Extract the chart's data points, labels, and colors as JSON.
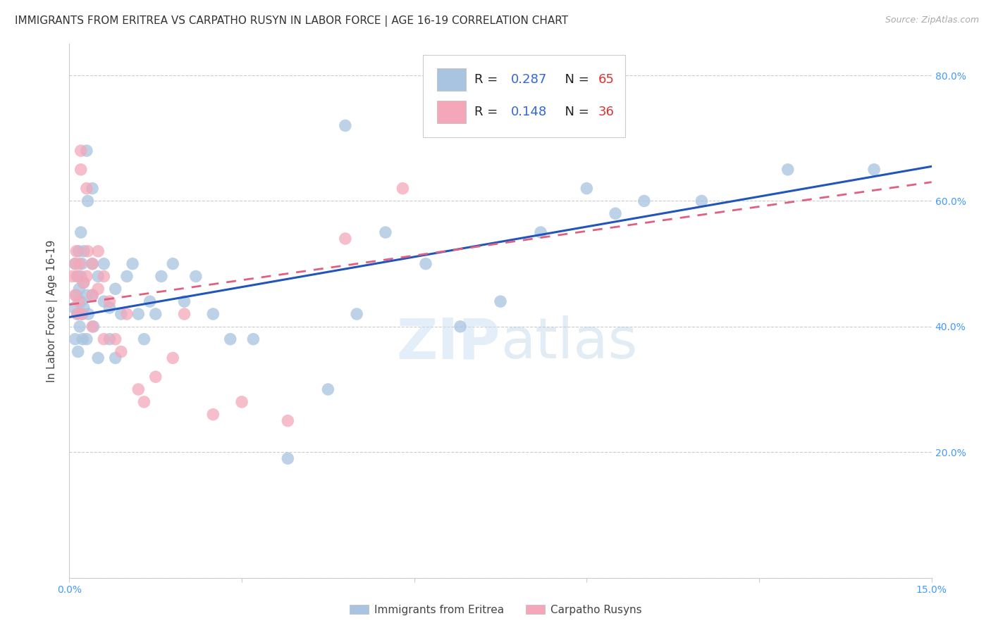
{
  "title": "IMMIGRANTS FROM ERITREA VS CARPATHO RUSYN IN LABOR FORCE | AGE 16-19 CORRELATION CHART",
  "source": "Source: ZipAtlas.com",
  "ylabel": "In Labor Force | Age 16-19",
  "xlim": [
    0.0,
    0.15
  ],
  "ylim": [
    0.0,
    0.85
  ],
  "x_ticks": [
    0.0,
    0.03,
    0.06,
    0.09,
    0.12,
    0.15
  ],
  "x_tick_labels": [
    "0.0%",
    "",
    "",
    "",
    "",
    "15.0%"
  ],
  "y_ticks": [
    0.0,
    0.2,
    0.4,
    0.6,
    0.8
  ],
  "y_tick_labels": [
    "",
    "20.0%",
    "40.0%",
    "60.0%",
    "80.0%"
  ],
  "color_eritrea": "#a8c4e0",
  "color_rusyn": "#f4a7b9",
  "line_color_eritrea": "#2255bb",
  "line_color_rusyn": "#e06080",
  "background_color": "#ffffff",
  "eritrea_x": [
    0.0008,
    0.001,
    0.001,
    0.0012,
    0.0013,
    0.0014,
    0.0015,
    0.0016,
    0.0017,
    0.0018,
    0.002,
    0.002,
    0.002,
    0.0022,
    0.0022,
    0.0023,
    0.0024,
    0.0025,
    0.0025,
    0.003,
    0.003,
    0.003,
    0.0032,
    0.0033,
    0.004,
    0.004,
    0.004,
    0.0042,
    0.005,
    0.005,
    0.006,
    0.006,
    0.007,
    0.007,
    0.008,
    0.008,
    0.009,
    0.01,
    0.011,
    0.012,
    0.013,
    0.014,
    0.015,
    0.016,
    0.018,
    0.02,
    0.022,
    0.025,
    0.028,
    0.032,
    0.038,
    0.045,
    0.048,
    0.05,
    0.055,
    0.062,
    0.068,
    0.075,
    0.082,
    0.09,
    0.095,
    0.1,
    0.11,
    0.125,
    0.14
  ],
  "eritrea_y": [
    0.43,
    0.5,
    0.38,
    0.45,
    0.48,
    0.42,
    0.36,
    0.52,
    0.46,
    0.4,
    0.48,
    0.55,
    0.44,
    0.5,
    0.42,
    0.38,
    0.47,
    0.43,
    0.52,
    0.45,
    0.38,
    0.68,
    0.6,
    0.42,
    0.5,
    0.45,
    0.62,
    0.4,
    0.48,
    0.35,
    0.44,
    0.5,
    0.43,
    0.38,
    0.46,
    0.35,
    0.42,
    0.48,
    0.5,
    0.42,
    0.38,
    0.44,
    0.42,
    0.48,
    0.5,
    0.44,
    0.48,
    0.42,
    0.38,
    0.38,
    0.19,
    0.3,
    0.72,
    0.42,
    0.55,
    0.5,
    0.4,
    0.44,
    0.55,
    0.62,
    0.58,
    0.6,
    0.6,
    0.65,
    0.65
  ],
  "rusyn_x": [
    0.0005,
    0.001,
    0.001,
    0.0012,
    0.0014,
    0.0015,
    0.0016,
    0.0018,
    0.002,
    0.002,
    0.0022,
    0.0025,
    0.003,
    0.003,
    0.0032,
    0.004,
    0.004,
    0.004,
    0.005,
    0.005,
    0.006,
    0.006,
    0.007,
    0.008,
    0.009,
    0.01,
    0.012,
    0.013,
    0.015,
    0.018,
    0.02,
    0.025,
    0.03,
    0.038,
    0.048,
    0.058
  ],
  "rusyn_y": [
    0.48,
    0.5,
    0.45,
    0.52,
    0.42,
    0.48,
    0.44,
    0.5,
    0.65,
    0.68,
    0.42,
    0.47,
    0.62,
    0.48,
    0.52,
    0.45,
    0.5,
    0.4,
    0.46,
    0.52,
    0.48,
    0.38,
    0.44,
    0.38,
    0.36,
    0.42,
    0.3,
    0.28,
    0.32,
    0.35,
    0.42,
    0.26,
    0.28,
    0.25,
    0.54,
    0.62
  ],
  "eritrea_line_x0": 0.0,
  "eritrea_line_x1": 0.15,
  "eritrea_line_y0": 0.415,
  "eritrea_line_y1": 0.655,
  "rusyn_line_x0": 0.0,
  "rusyn_line_x1": 0.15,
  "rusyn_line_y0": 0.435,
  "rusyn_line_y1": 0.63,
  "title_fontsize": 11,
  "axis_label_fontsize": 11,
  "tick_fontsize": 10
}
